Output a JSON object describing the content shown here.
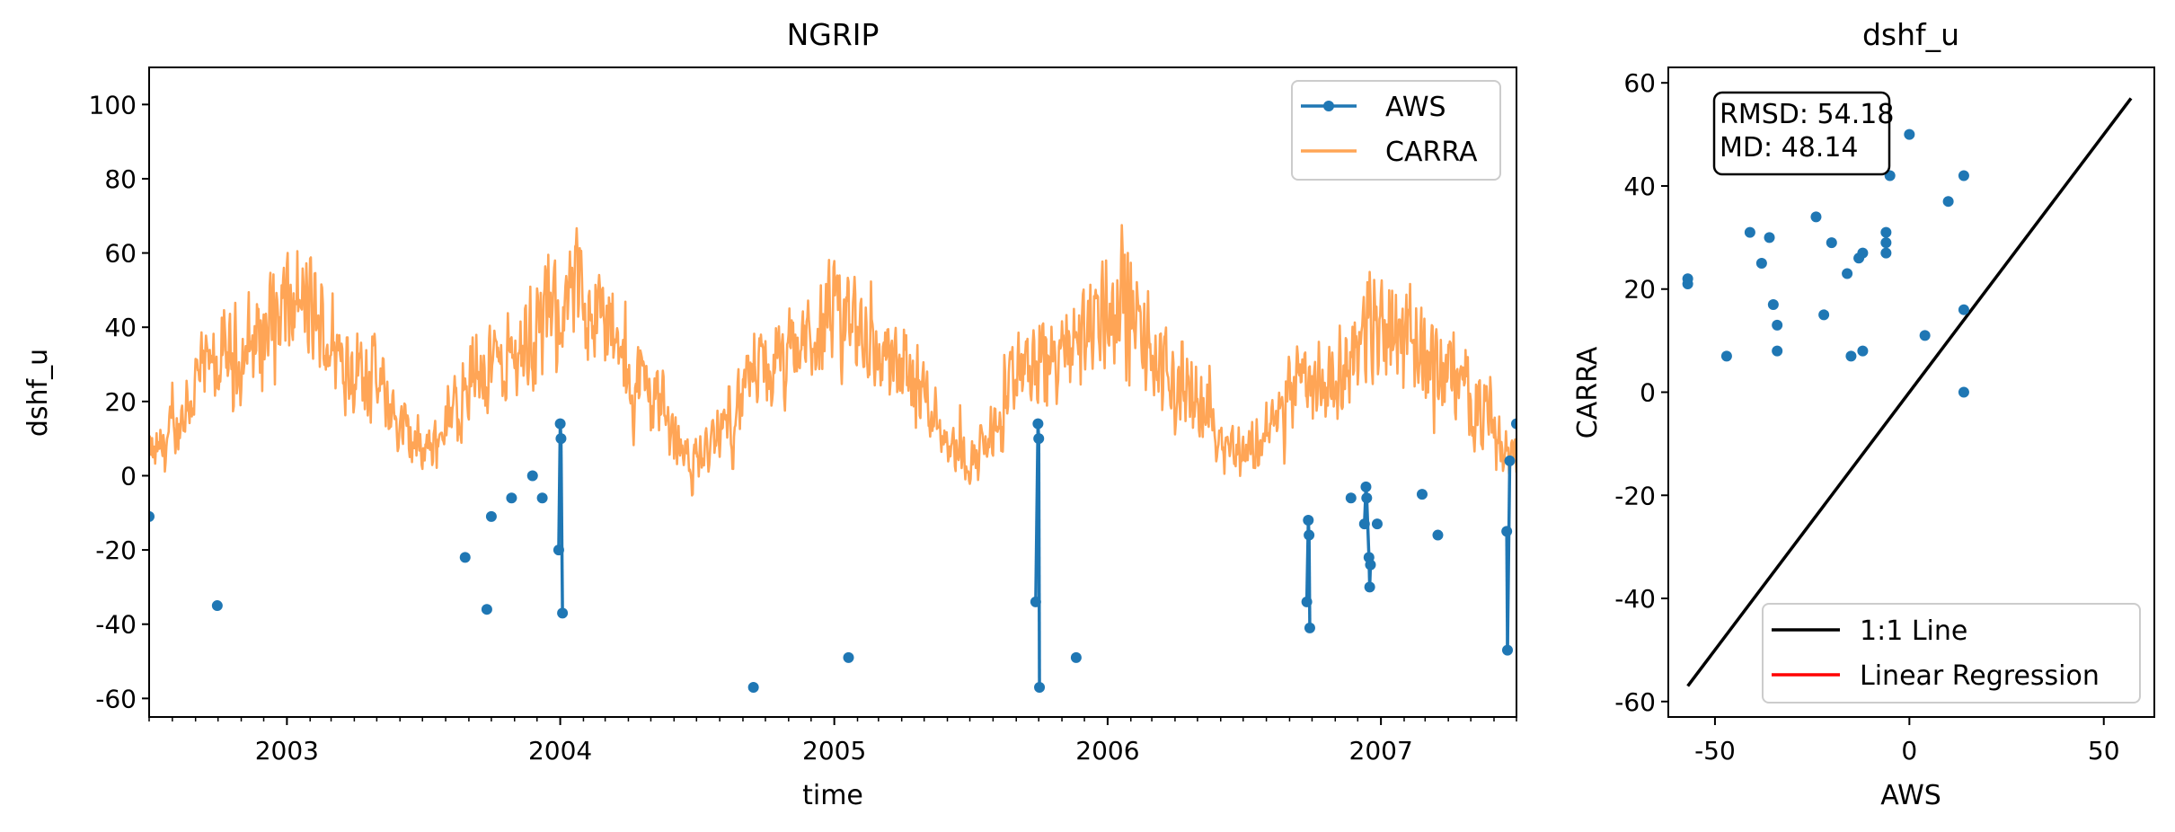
{
  "chart_data": [
    {
      "type": "line",
      "title": "NGRIP",
      "xlabel": "time",
      "ylabel": "dshf_u",
      "xlim": [
        "2002-07-01",
        "2007-07-01"
      ],
      "ylim": [
        -65,
        110
      ],
      "x_ticks": [
        "2003",
        "2004",
        "2005",
        "2006",
        "2007"
      ],
      "y_ticks": [
        -60,
        -40,
        -20,
        0,
        20,
        40,
        60,
        80,
        100
      ],
      "legend_position": "top-right",
      "series": [
        {
          "name": "AWS",
          "color": "#1f77b4",
          "style": "line-with-markers",
          "points": [
            {
              "x": "2002-07-01",
              "y": -11
            },
            {
              "x": "2002-09-30",
              "y": -35
            },
            {
              "x": "2003-08-27",
              "y": -22
            },
            {
              "x": "2003-09-25",
              "y": -36
            },
            {
              "x": "2003-10-01",
              "y": -11
            },
            {
              "x": "2003-10-28",
              "y": -6
            },
            {
              "x": "2003-11-25",
              "y": 0
            },
            {
              "x": "2003-12-08",
              "y": -6
            },
            {
              "x": "2003-12-30",
              "y": -20
            },
            {
              "x": "2004-01-01",
              "y": 14
            },
            {
              "x": "2004-01-02",
              "y": 10
            },
            {
              "x": "2004-01-04",
              "y": -37
            },
            {
              "x": "2004-09-15",
              "y": -57
            },
            {
              "x": "2005-01-20",
              "y": -49
            },
            {
              "x": "2005-09-27",
              "y": -34
            },
            {
              "x": "2005-09-30",
              "y": 14
            },
            {
              "x": "2005-10-01",
              "y": 10
            },
            {
              "x": "2005-10-02",
              "y": -57
            },
            {
              "x": "2005-11-20",
              "y": -49
            },
            {
              "x": "2006-09-24",
              "y": -34
            },
            {
              "x": "2006-09-26",
              "y": -12
            },
            {
              "x": "2006-09-27",
              "y": -16
            },
            {
              "x": "2006-09-28",
              "y": -41
            },
            {
              "x": "2006-11-22",
              "y": -6
            },
            {
              "x": "2006-12-10",
              "y": -13
            },
            {
              "x": "2006-12-12",
              "y": -3
            },
            {
              "x": "2006-12-13",
              "y": -6
            },
            {
              "x": "2006-12-16",
              "y": -22
            },
            {
              "x": "2006-12-17",
              "y": -30
            },
            {
              "x": "2006-12-18",
              "y": -24
            },
            {
              "x": "2006-12-27",
              "y": -13
            },
            {
              "x": "2007-02-25",
              "y": -5
            },
            {
              "x": "2007-03-18",
              "y": -16
            },
            {
              "x": "2007-06-18",
              "y": -15
            },
            {
              "x": "2007-06-19",
              "y": -47
            },
            {
              "x": "2007-06-22",
              "y": 4
            },
            {
              "x": "2007-07-01",
              "y": 14
            }
          ]
        },
        {
          "name": "CARRA",
          "color": "#ffa556",
          "style": "line",
          "note_shape": "seasonal daily series",
          "seasonal_envelope": [
            {
              "x": "2002-07-01",
              "y": 5
            },
            {
              "x": "2002-10-01",
              "y": 30
            },
            {
              "x": "2003-01-15",
              "y": 45
            },
            {
              "x": "2003-04-01",
              "y": 30
            },
            {
              "x": "2003-07-01",
              "y": 8
            },
            {
              "x": "2003-10-01",
              "y": 30
            },
            {
              "x": "2004-02-01",
              "y": 48
            },
            {
              "x": "2004-04-15",
              "y": 25
            },
            {
              "x": "2004-07-01",
              "y": 5
            },
            {
              "x": "2004-10-01",
              "y": 28
            },
            {
              "x": "2005-01-15",
              "y": 42
            },
            {
              "x": "2005-04-01",
              "y": 28
            },
            {
              "x": "2005-07-01",
              "y": 5
            },
            {
              "x": "2005-10-01",
              "y": 30
            },
            {
              "x": "2006-01-15",
              "y": 45
            },
            {
              "x": "2006-04-01",
              "y": 25
            },
            {
              "x": "2006-07-01",
              "y": 7
            },
            {
              "x": "2006-10-01",
              "y": 25
            },
            {
              "x": "2007-01-15",
              "y": 42
            },
            {
              "x": "2007-04-01",
              "y": 28
            },
            {
              "x": "2007-07-01",
              "y": 6
            }
          ]
        }
      ]
    },
    {
      "type": "scatter",
      "title": "dshf_u",
      "xlabel": "AWS",
      "ylabel": "CARRA",
      "xlim": [
        -62,
        63
      ],
      "ylim": [
        -63,
        63
      ],
      "x_ticks": [
        -50,
        0,
        50
      ],
      "y_ticks": [
        -60,
        -40,
        -20,
        0,
        20,
        40,
        60
      ],
      "legend_position": "bottom-right",
      "stats": {
        "rmsd": "RMSD: 54.18",
        "md": "MD: 48.14"
      },
      "points_color": "#1f77b4",
      "points": [
        [
          -57,
          21
        ],
        [
          -57,
          22
        ],
        [
          -47,
          7
        ],
        [
          -41,
          31
        ],
        [
          -38,
          25
        ],
        [
          -36,
          30
        ],
        [
          -35,
          17
        ],
        [
          -34,
          13
        ],
        [
          -34,
          8
        ],
        [
          -24,
          34
        ],
        [
          -22,
          15
        ],
        [
          -20,
          29
        ],
        [
          -16,
          23
        ],
        [
          -15,
          7
        ],
        [
          -13,
          26
        ],
        [
          -12,
          27
        ],
        [
          -12,
          8
        ],
        [
          -6,
          29
        ],
        [
          -6,
          31
        ],
        [
          -6,
          27
        ],
        [
          -5,
          42
        ],
        [
          0,
          50
        ],
        [
          4,
          11
        ],
        [
          10,
          37
        ],
        [
          14,
          42
        ],
        [
          14,
          16
        ],
        [
          14,
          0
        ]
      ],
      "lines": [
        {
          "name": "1:1 Line",
          "color": "#000000",
          "from": [
            -57,
            -57
          ],
          "to": [
            57,
            57
          ]
        },
        {
          "name": "Linear Regression",
          "color": "#ff0000"
        }
      ]
    }
  ]
}
